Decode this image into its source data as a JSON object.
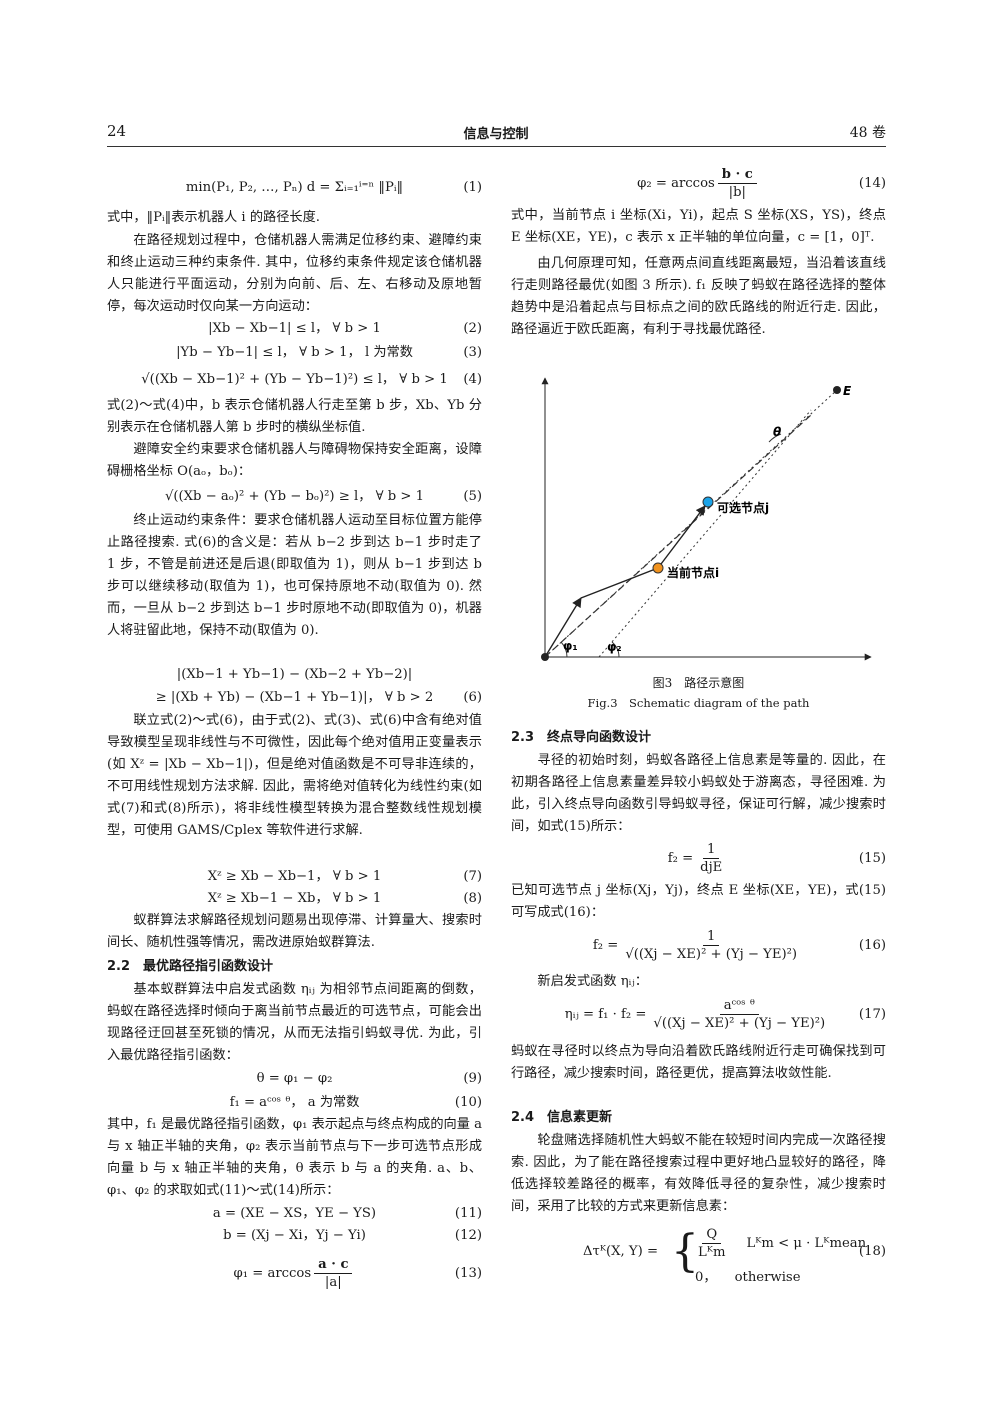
{
  "header": {
    "page": "24",
    "journal": "信息与控制",
    "volume": "48 卷"
  },
  "left": {
    "eq1": {
      "text": "min(P₁, P₂, …, Pₙ) d = Σᵢ₌₁ⁱ⁼ⁿ ‖Pᵢ‖",
      "number": "(1)"
    },
    "p1": "式中，‖Pᵢ‖表示机器人 i 的路径长度.",
    "p2": "在路径规划过程中，仓储机器人需满足位移约束、避障约束和终止运动三种约束条件. 其中，位移约束条件规定该仓储机器人只能进行平面运动，分别为向前、后、左、右移动及原地暂停，每次运动时仅向某一方向运动：",
    "eq2": {
      "text": "|Xb − Xb−1| ≤ l， ∀ b > 1",
      "number": "(2)"
    },
    "eq3": {
      "text": "|Yb − Yb−1| ≤ l， ∀ b > 1， l 为常数",
      "number": "(3)"
    },
    "eq4": {
      "text": "√((Xb − Xb−1)² + (Yb − Yb−1)²) ≤ l， ∀ b > 1",
      "number": "(4)"
    },
    "p3": "式(2)～式(4)中，b 表示仓储机器人行走至第 b 步，Xb、Yb 分别表示在仓储机器人第 b 步时的横纵坐标值.",
    "p4": "避障安全约束要求仓储机器人与障碍物保持安全距离，设障碍栅格坐标 O(aₒ，bₒ)：",
    "eq5": {
      "text": "√((Xb − aₒ)² + (Yb − bₒ)²) ≥ l， ∀ b > 1",
      "number": "(5)"
    },
    "p5": "终止运动约束条件：要求仓储机器人运动至目标位置方能停止路径搜索. 式(6)的含义是：若从 b−2 步到达 b−1 步时走了 1 步，不管是前进还是后退(即取值为 1)，则从 b−1 步到达 b 步可以继续移动(取值为 1)，也可保持原地不动(取值为 0). 然而，一旦从 b−2 步到达 b−1 步时原地不动(即取值为 0)，机器人将驻留此地，保持不动(取值为 0).",
    "eq6": {
      "line1": "|(Xb−1 + Yb−1) − (Xb−2 + Yb−2)|",
      "line2": "≥ |(Xb + Yb) − (Xb−1 + Yb−1)|， ∀ b > 2",
      "number": "(6)"
    },
    "p6": "联立式(2)～式(6)，由于式(2)、式(3)、式(6)中含有绝对值导致模型呈现非线性与不可微性，因此每个绝对值用正变量表示(如 Xᶻ = |Xb − Xb−1|)，但是绝对值函数是不可导非连续的，不可用线性规划方法求解. 因此，需将绝对值转化为线性约束(如式(7)和式(8)所示)，将非线性模型转换为混合整数线性规划模型，可使用 GAMS/Cplex 等软件进行求解.",
    "eq7": {
      "text": "Xᶻ ≥ Xb − Xb−1， ∀ b > 1",
      "number": "(7)"
    },
    "eq8": {
      "text": "Xᶻ ≥ Xb−1 − Xb， ∀ b > 1",
      "number": "(8)"
    },
    "p7": "蚁群算法求解路径规划问题易出现停滞、计算量大、搜索时间长、随机性强等情况，需改进原始蚁群算法.",
    "h22": "2.2　最优路径指引函数设计",
    "p8": "基本蚁群算法中启发式函数 ηᵢⱼ 为相邻节点间距离的倒数，蚂蚁在路径选择时倾向于离当前节点最近的可选节点，可能会出现路径迂回甚至死锁的情况，从而无法指引蚂蚁寻优. 为此，引入最优路径指引函数：",
    "eq9": {
      "text": "θ = φ₁ − φ₂",
      "number": "(9)"
    },
    "eq10": {
      "text": "f₁ = aᶜᵒˢ ᶿ， a 为常数",
      "number": "(10)"
    },
    "p9": "其中，f₁ 是最优路径指引函数，φ₁ 表示起点与终点构成的向量 a 与 x 轴正半轴的夹角，φ₂ 表示当前节点与下一步可选节点形成向量 b 与 x 轴正半轴的夹角，θ 表示 b 与 a 的夹角. a、b、φ₁、φ₂ 的求取如式(11)～式(14)所示：",
    "eq11": {
      "text": "a = (XE − XS，YE − YS)",
      "number": "(11)"
    },
    "eq12": {
      "text": "b = (Xj − Xi，Yj − Yi)",
      "number": "(12)"
    },
    "eq13": {
      "lhs": "φ₁ = arccos",
      "num": "a · c",
      "den": "|a|",
      "number": "(13)"
    }
  },
  "right": {
    "eq14": {
      "lhs": "φ₂ = arccos",
      "num": "b · c",
      "den": "|b|",
      "number": "(14)"
    },
    "p1": "式中，当前节点 i 坐标(Xi，Yi)，起点 S 坐标(XS，YS)，终点 E 坐标(XE，YE)，c 表示 x 正半轴的单位向量，c = [1，0]ᵀ.",
    "p2": "由几何原理可知，任意两点间直线距离最短，当沿着该直线行走则路径最优(如图 3 所示). f₁ 反映了蚂蚁在路径选择的整体趋势中是沿着起点与目标点之间的欧氏路线的附近行走. 因此，路径逼近于欧氏距离，有利于寻找最优路径.",
    "h23": "2.3　终点导向函数设计",
    "p3": "寻径的初始时刻，蚂蚁各路径上信息素是等量的. 因此，在初期各路径上信息素量差异较小蚂蚁处于游离态，寻径困难. 为此，引入终点导向函数引导蚂蚁寻径，保证可行解，减少搜索时间，如式(15)所示：",
    "eq15": {
      "lhs": "f₂ =",
      "num": "1",
      "den": "djE",
      "number": "(15)"
    },
    "p4": "已知可选节点 j 坐标(Xj，Yj)，终点 E 坐标(XE，YE)，式(15)可写成式(16)：",
    "eq16": {
      "lhs": "f₂ =",
      "num": "1",
      "den": "√((Xj − XE)² + (Yj − YE)²)",
      "number": "(16)"
    },
    "p5": "新启发式函数 ηᵢⱼ：",
    "eq17": {
      "lhs": "ηᵢⱼ = f₁ · f₂ =",
      "num": "aᶜᵒˢ ᶿ",
      "den": "√((Xj − XE)² + (Yj − YE)²)",
      "number": "(17)"
    },
    "p6": "蚂蚁在寻径时以终点为导向沿着欧氏路线附近行走可确保找到可行路径，减少搜索时间，路径更优，提高算法收敛性能.",
    "h24": "2.4　信息素更新",
    "p7": "轮盘赌选择随机性大蚂蚁不能在较短时间内完成一次路径搜索. 因此，为了能在路径搜索过程中更好地凸显较好的路径，降低选择较差路径的概率，有效降低寻径的复杂性，减少搜索时间，采用了比较的方式来更新信息素：",
    "eq18": {
      "lhs": "Δτᴷ(X, Y) =",
      "case1_num": "Q",
      "case1_den": "Lᴷm",
      "case1_cond": "Lᴷm < μ · Lᴷmean",
      "case2": "0，",
      "case2_cond": "otherwise",
      "number": "(18)"
    }
  },
  "figure": {
    "E": "E",
    "theta": "θ",
    "node_j": "可选节点j",
    "node_i": "当前节点i",
    "phi1": "φ₁",
    "phi2": "φ₂",
    "caption_cn": "图3　路径示意图",
    "caption_en": "Fig.3　Schematic diagram of the path"
  }
}
